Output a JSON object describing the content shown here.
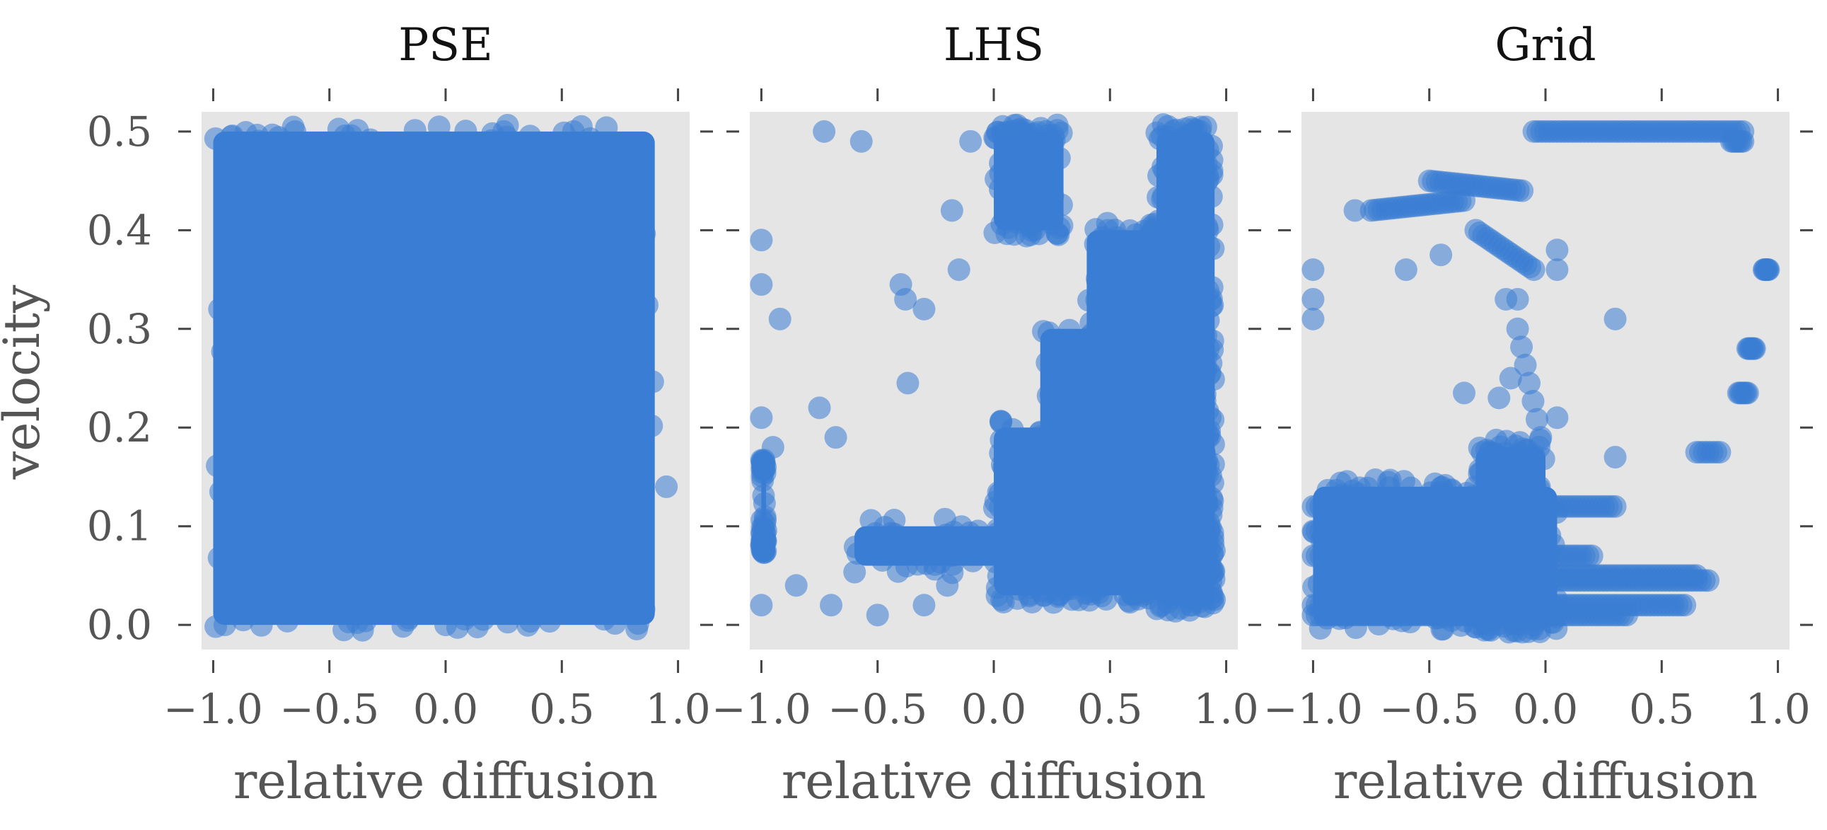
{
  "figure": {
    "ylabel": "velocity",
    "colors": {
      "points": "#3a7dd4",
      "panel_background": "#e5e5e5",
      "text": "#555555"
    }
  },
  "chart_data": [
    {
      "type": "scatter",
      "title": "PSE",
      "xlabel": "relative diffusion",
      "ylabel": "velocity",
      "xlim": [
        -1.05,
        1.05
      ],
      "ylim": [
        -0.025,
        0.52
      ],
      "x_ticks": [
        "−1.0",
        "−0.5",
        "0.0",
        "0.5",
        "1.0"
      ],
      "y_ticks": [
        "0.0",
        "0.1",
        "0.2",
        "0.3",
        "0.4",
        "0.5"
      ],
      "grid": false,
      "points": {
        "fill_regions": [
          {
            "x": [
              -1.0,
              0.9
            ],
            "y": [
              0.0,
              0.5
            ]
          }
        ],
        "outliers": [
          [
            0.0,
            0.0
          ],
          [
            0.95,
            0.14
          ],
          [
            0.25,
            0.5
          ],
          [
            0.55,
            0.5
          ],
          [
            -0.95,
            0.0
          ],
          [
            0.85,
            0.03
          ],
          [
            0.7,
            0.02
          ],
          [
            0.1,
            0.01
          ]
        ]
      }
    },
    {
      "type": "scatter",
      "title": "LHS",
      "xlabel": "relative diffusion",
      "ylabel": "",
      "xlim": [
        -1.05,
        1.05
      ],
      "ylim": [
        -0.025,
        0.52
      ],
      "x_ticks": [
        "−1.0",
        "−0.5",
        "0.0",
        "0.5",
        "1.0"
      ],
      "y_ticks": [
        "0.0",
        "0.1",
        "0.2",
        "0.3",
        "0.4",
        "0.5"
      ],
      "grid": false,
      "points": {
        "fill_regions": [
          {
            "x": [
              -0.6,
              0.95
            ],
            "y": [
              0.06,
              0.1
            ]
          },
          {
            "x": [
              0.0,
              0.95
            ],
            "y": [
              0.03,
              0.2
            ]
          },
          {
            "x": [
              0.2,
              0.95
            ],
            "y": [
              0.03,
              0.3
            ]
          },
          {
            "x": [
              0.4,
              0.95
            ],
            "y": [
              0.05,
              0.4
            ]
          },
          {
            "x": [
              0.7,
              0.95
            ],
            "y": [
              0.02,
              0.5
            ]
          },
          {
            "x": [
              0.0,
              0.3
            ],
            "y": [
              0.4,
              0.5
            ]
          },
          {
            "x": [
              -1.0,
              -0.98
            ],
            "y": [
              0.08,
              0.16
            ]
          }
        ],
        "outliers": [
          [
            -0.73,
            0.5
          ],
          [
            -0.57,
            0.49
          ],
          [
            -1.0,
            0.39
          ],
          [
            -1.0,
            0.345
          ],
          [
            -0.92,
            0.31
          ],
          [
            -0.4,
            0.345
          ],
          [
            -0.38,
            0.33
          ],
          [
            -0.3,
            0.32
          ],
          [
            -0.18,
            0.42
          ],
          [
            -0.15,
            0.36
          ],
          [
            -0.1,
            0.49
          ],
          [
            -0.37,
            0.245
          ],
          [
            -0.75,
            0.22
          ],
          [
            -0.68,
            0.19
          ],
          [
            -0.95,
            0.18
          ],
          [
            -1.0,
            0.21
          ],
          [
            -0.85,
            0.04
          ],
          [
            -0.7,
            0.02
          ],
          [
            -0.5,
            0.01
          ],
          [
            -1.0,
            0.02
          ],
          [
            -0.3,
            0.02
          ],
          [
            -0.2,
            0.04
          ]
        ]
      }
    },
    {
      "type": "scatter",
      "title": "Grid",
      "xlabel": "relative diffusion",
      "ylabel": "",
      "xlim": [
        -1.05,
        1.05
      ],
      "ylim": [
        -0.025,
        0.52
      ],
      "x_ticks": [
        "−1.0",
        "−0.5",
        "0.0",
        "0.5",
        "1.0"
      ],
      "y_ticks": [
        "0.0",
        "0.1",
        "0.2",
        "0.3",
        "0.4",
        "0.5"
      ],
      "grid": false,
      "points": {
        "segments": [
          {
            "x": [
              -0.05,
              0.85
            ],
            "y": [
              0.5,
              0.5
            ]
          },
          {
            "x": [
              0.8,
              0.85
            ],
            "y": [
              0.49,
              0.49
            ]
          },
          {
            "x": [
              -0.75,
              -0.35
            ],
            "y": [
              0.42,
              0.43
            ]
          },
          {
            "x": [
              -0.5,
              -0.1
            ],
            "y": [
              0.45,
              0.44
            ]
          },
          {
            "x": [
              -0.3,
              -0.05
            ],
            "y": [
              0.4,
              0.36
            ]
          },
          {
            "x": [
              -0.12,
              -0.02
            ],
            "y": [
              0.3,
              0.19
            ]
          },
          {
            "x": [
              -1.0,
              0.3
            ],
            "y": [
              0.12,
              0.12
            ]
          },
          {
            "x": [
              -1.0,
              0.0
            ],
            "y": [
              0.095,
              0.095
            ]
          },
          {
            "x": [
              -1.0,
              0.2
            ],
            "y": [
              0.07,
              0.07
            ]
          },
          {
            "x": [
              -0.95,
              0.65
            ],
            "y": [
              0.05,
              0.05
            ]
          },
          {
            "x": [
              -0.95,
              0.7
            ],
            "y": [
              0.045,
              0.045
            ]
          },
          {
            "x": [
              -1.0,
              0.6
            ],
            "y": [
              0.02,
              0.02
            ]
          },
          {
            "x": [
              -1.0,
              0.35
            ],
            "y": [
              0.01,
              0.01
            ]
          },
          {
            "x": [
              0.65,
              0.75
            ],
            "y": [
              0.175,
              0.175
            ]
          },
          {
            "x": [
              0.83,
              0.87
            ],
            "y": [
              0.235,
              0.235
            ]
          },
          {
            "x": [
              0.87,
              0.9
            ],
            "y": [
              0.28,
              0.28
            ]
          },
          {
            "x": [
              0.94,
              0.96
            ],
            "y": [
              0.36,
              0.36
            ]
          }
        ],
        "fill_regions": [
          {
            "x": [
              -1.0,
              0.05
            ],
            "y": [
              0.0,
              0.14
            ]
          },
          {
            "x": [
              -0.3,
              0.0
            ],
            "y": [
              0.0,
              0.18
            ]
          }
        ],
        "outliers": [
          [
            -1.0,
            0.36
          ],
          [
            -1.0,
            0.33
          ],
          [
            -1.0,
            0.31
          ],
          [
            -0.82,
            0.42
          ],
          [
            -0.6,
            0.36
          ],
          [
            0.05,
            0.38
          ],
          [
            0.05,
            0.36
          ],
          [
            0.3,
            0.31
          ],
          [
            0.3,
            0.17
          ],
          [
            -0.35,
            0.235
          ],
          [
            -0.2,
            0.23
          ],
          [
            -0.15,
            0.25
          ],
          [
            0.05,
            0.21
          ],
          [
            -0.45,
            0.375
          ],
          [
            -0.12,
            0.33
          ],
          [
            -0.17,
            0.33
          ]
        ]
      }
    }
  ]
}
